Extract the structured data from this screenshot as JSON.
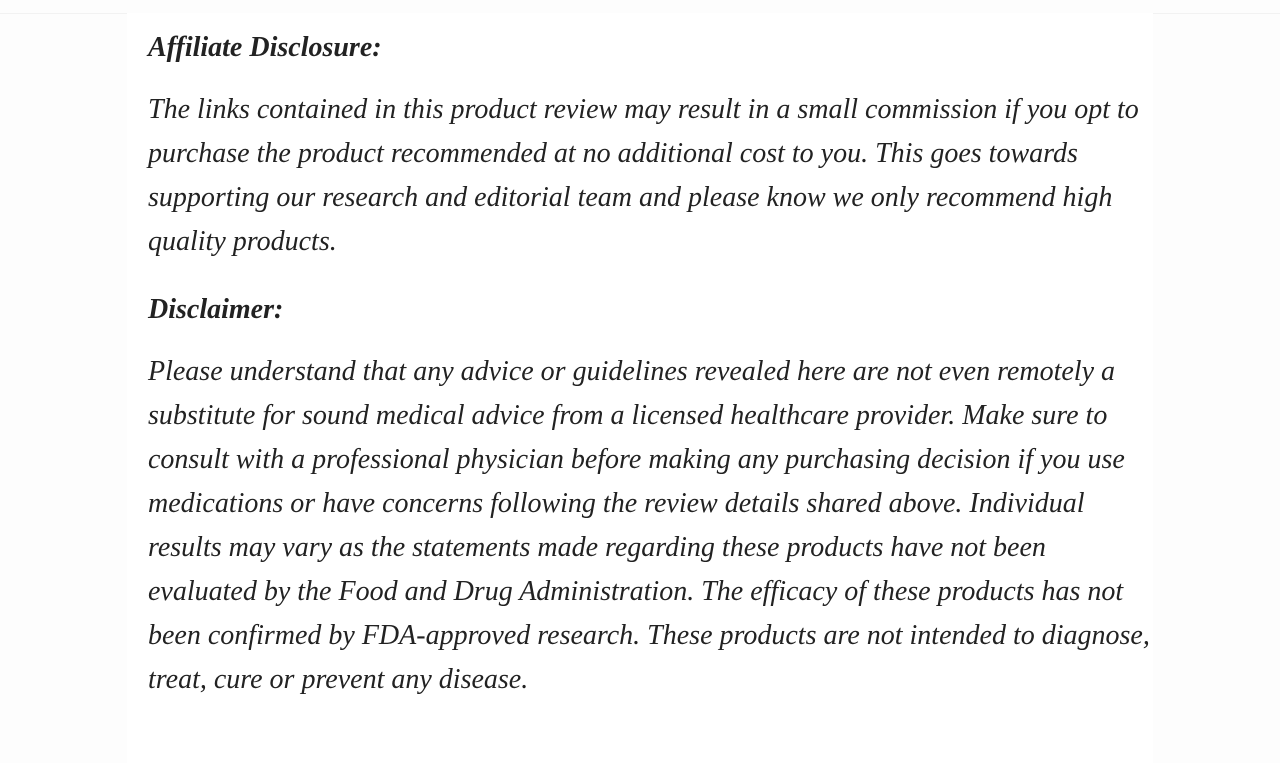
{
  "page": {
    "background_color": "#fdfdfd",
    "card_background_color": "#ffffff",
    "text_color": "#222222"
  },
  "article": {
    "sections": [
      {
        "heading": "Affiliate Disclosure:",
        "paragraphs": [
          "The links contained in this product review may result in a small commission if you opt to purchase the product recommended at no additional cost to you. This goes towards supporting our research and editorial team and please know we only recommend high quality products."
        ]
      },
      {
        "heading": "Disclaimer:",
        "paragraphs": [
          "Please understand that any advice or guidelines revealed here are not even remotely a substitute for sound medical advice from a licensed healthcare provider. Make sure to consult with a professional physician before making any purchasing decision if you use medications or have concerns following the review details shared above. Individual results may vary as the statements made regarding these products have not been evaluated by the Food and Drug Administration. The efficacy of these products has not been confirmed by FDA-approved research. These products are not intended to diagnose, treat, cure or prevent any disease."
        ]
      }
    ]
  }
}
